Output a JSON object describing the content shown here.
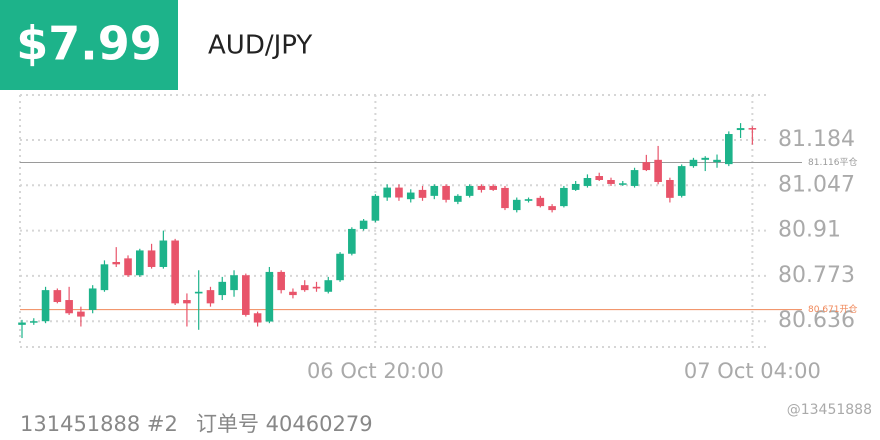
{
  "header": {
    "price": "$7.99",
    "symbol": "AUD/JPY"
  },
  "chart_data": {
    "type": "candlestick",
    "categories": [
      null,
      null,
      null,
      null,
      null,
      null,
      null,
      null,
      null,
      null,
      null,
      null,
      null,
      null,
      null,
      null,
      null,
      null,
      null,
      null,
      null,
      null,
      null,
      null,
      null,
      null,
      null,
      null,
      null,
      null,
      "06 Oct 20:00",
      null,
      null,
      null,
      null,
      null,
      null,
      null,
      null,
      null,
      null,
      null,
      null,
      null,
      null,
      null,
      null,
      null,
      null,
      null,
      null,
      null,
      null,
      null,
      null,
      null,
      null,
      null,
      null,
      null,
      null,
      null,
      "07 Oct 04:00"
    ],
    "open": [
      80.625,
      80.632,
      80.636,
      80.73,
      80.7,
      80.665,
      80.67,
      80.73,
      80.815,
      80.826,
      80.775,
      80.85,
      80.8,
      80.88,
      80.7,
      80.72,
      80.73,
      80.715,
      80.73,
      80.775,
      80.66,
      80.635,
      80.785,
      80.725,
      80.745,
      80.74,
      80.725,
      80.76,
      80.84,
      80.915,
      80.94,
      81.01,
      81.04,
      81.005,
      81.033,
      81.015,
      81.045,
      80.997,
      81.015,
      81.045,
      81.045,
      81.039,
      80.972,
      81.0,
      81.009,
      80.984,
      80.984,
      81.033,
      81.045,
      81.075,
      81.063,
      81.051,
      81.045,
      81.117,
      81.124,
      81.063,
      81.015,
      81.105,
      81.124,
      81.117,
      81.111,
      81.214,
      81.22
    ],
    "high": [
      80.64,
      80.645,
      80.74,
      80.735,
      80.74,
      80.68,
      80.745,
      80.82,
      80.86,
      80.835,
      80.855,
      80.87,
      80.91,
      80.885,
      80.72,
      80.79,
      80.74,
      80.77,
      80.79,
      80.78,
      80.665,
      80.8,
      80.79,
      80.735,
      80.76,
      80.755,
      80.77,
      80.845,
      80.92,
      80.945,
      81.02,
      81.05,
      81.05,
      81.035,
      81.045,
      81.05,
      81.05,
      81.02,
      81.05,
      81.05,
      81.05,
      81.045,
      81.01,
      81.01,
      81.015,
      80.99,
      81.045,
      81.06,
      81.08,
      81.085,
      81.07,
      81.06,
      81.1,
      81.139,
      81.166,
      81.07,
      81.11,
      81.13,
      81.135,
      81.14,
      81.21,
      81.235,
      81.225
    ],
    "low": [
      80.585,
      80.625,
      80.63,
      80.69,
      80.655,
      80.62,
      80.66,
      80.725,
      80.8,
      80.77,
      80.77,
      80.795,
      80.795,
      80.685,
      80.62,
      80.61,
      80.68,
      80.7,
      80.71,
      80.65,
      80.62,
      80.63,
      80.72,
      80.705,
      80.725,
      80.725,
      80.72,
      80.755,
      80.835,
      80.91,
      80.935,
      81.0,
      81.0,
      80.995,
      81.0,
      81.005,
      80.995,
      80.99,
      81.01,
      81.025,
      81.03,
      80.972,
      80.965,
      80.995,
      80.98,
      80.965,
      80.98,
      81.03,
      81.04,
      81.06,
      81.045,
      81.045,
      81.04,
      81.09,
      81.05,
      80.995,
      81.01,
      81.1,
      81.09,
      81.1,
      81.105,
      81.19,
      81.17
    ],
    "close": [
      80.632,
      80.636,
      80.73,
      80.694,
      80.66,
      80.65,
      80.735,
      80.808,
      80.808,
      80.775,
      80.85,
      80.8,
      80.88,
      80.69,
      80.69,
      80.725,
      80.69,
      80.755,
      80.775,
      80.655,
      80.632,
      80.785,
      80.73,
      80.715,
      80.73,
      80.735,
      80.76,
      80.84,
      80.915,
      80.94,
      81.015,
      81.04,
      81.01,
      81.025,
      81.009,
      81.045,
      81.003,
      81.015,
      81.045,
      81.033,
      81.033,
      80.978,
      81.003,
      81.005,
      80.984,
      80.972,
      81.039,
      81.051,
      81.069,
      81.063,
      81.051,
      81.053,
      81.093,
      81.093,
      81.057,
      81.009,
      81.105,
      81.124,
      81.13,
      81.124,
      81.202,
      81.22,
      81.218
    ],
    "up_color": "#1db38a",
    "down_color": "#e8546a",
    "ylim": [
      80.558,
      81.32
    ],
    "yticks": [
      81.184,
      81.047,
      80.91,
      80.773,
      80.636
    ],
    "grid": true,
    "reference_lines": [
      {
        "value": 81.116,
        "label": "81.116平仓",
        "color": "#9a9a9a"
      },
      {
        "value": 80.671,
        "label": "80.671开仓",
        "color": "#f0885a"
      }
    ]
  },
  "footer": {
    "account": "131451888 #2",
    "order": "订单号 40460279",
    "watermark": "@13451888"
  }
}
